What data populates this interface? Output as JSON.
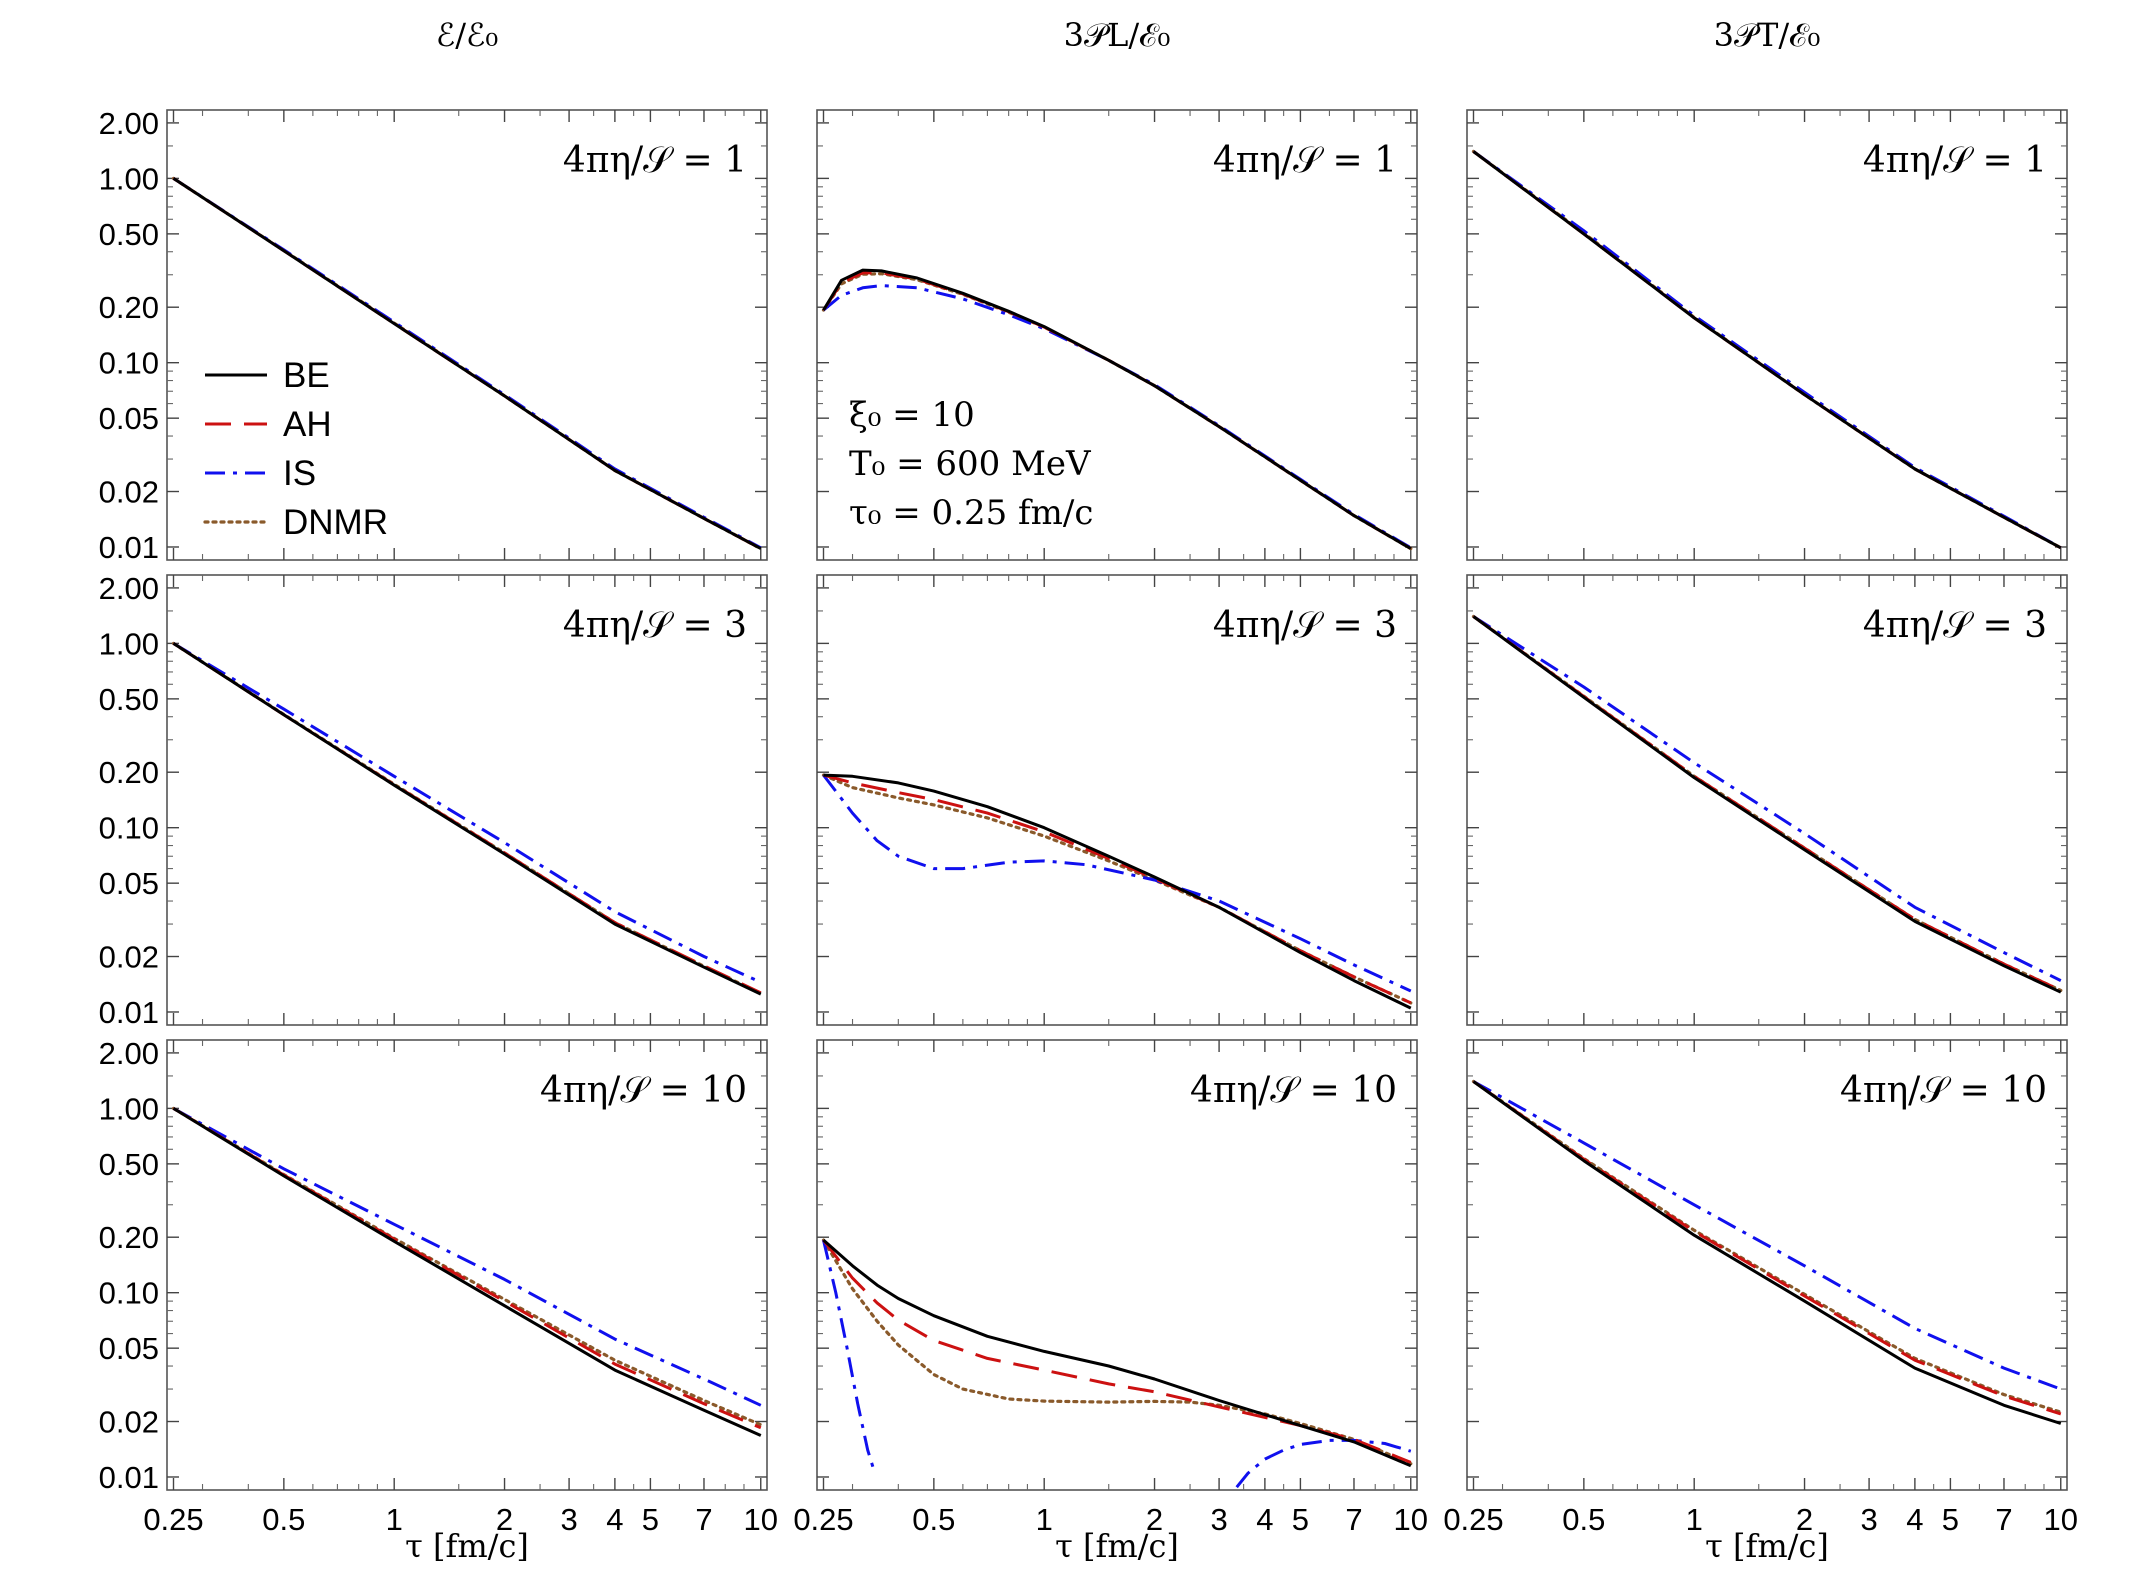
{
  "chart_data": {
    "type": "line",
    "layout": "3x3 grid of log-log panels",
    "columns": [
      {
        "title": "ℰ/ℰ₀"
      },
      {
        "title": "3𝒫L/ℰ₀"
      },
      {
        "title": "3𝒫T/ℰ₀"
      }
    ],
    "rows": [
      {
        "label": "4πη/𝒮 = 1"
      },
      {
        "label": "4πη/𝒮 = 3"
      },
      {
        "label": "4πη/𝒮 = 10"
      }
    ],
    "xlabel": "τ [fm/c]",
    "xscale": "log",
    "xlim": [
      0.24,
      10.4
    ],
    "x_ticks": [
      0.25,
      0.5,
      1,
      2,
      3,
      4,
      5,
      7,
      10
    ],
    "x_tick_labels": [
      "0.25",
      "0.5",
      "1",
      "2",
      "3",
      "4",
      "5",
      "7",
      "10"
    ],
    "yscale": "log",
    "ylim": [
      0.0085,
      2.35
    ],
    "y_ticks": [
      0.01,
      0.02,
      0.05,
      0.1,
      0.2,
      0.5,
      1,
      2
    ],
    "y_tick_labels": [
      "0.01",
      "0.02",
      "0.05",
      "0.10",
      "0.20",
      "0.50",
      "1.00",
      "2.00"
    ],
    "legend": {
      "position": "left-middle of top-left panel",
      "entries": [
        {
          "name": "BE",
          "color": "#000000",
          "dash": "solid"
        },
        {
          "name": "AH",
          "color": "#cc1111",
          "dash": "dashed"
        },
        {
          "name": "IS",
          "color": "#1010ee",
          "dash": "dash-dot"
        },
        {
          "name": "DNMR",
          "color": "#8a5a2b",
          "dash": "dotted"
        }
      ]
    },
    "annotation": {
      "line1": "ξ₀ = 10",
      "line2": "T₀ = 600 MeV",
      "line3": "τ₀ = 0.25 fm/c"
    },
    "panels": [
      {
        "row": 0,
        "col": 0,
        "series": [
          {
            "name": "BE",
            "x": [
              0.25,
              0.5,
              1,
              2,
              4,
              7,
              10
            ],
            "y": [
              1.0,
              0.405,
              0.163,
              0.066,
              0.026,
              0.0143,
              0.0098
            ]
          },
          {
            "name": "AH",
            "x": [
              0.25,
              0.5,
              1,
              2,
              4,
              7,
              10
            ],
            "y": [
              1.0,
              0.405,
              0.163,
              0.066,
              0.026,
              0.0143,
              0.0098
            ]
          },
          {
            "name": "IS",
            "x": [
              0.25,
              0.5,
              1,
              2,
              4,
              7,
              10
            ],
            "y": [
              1.0,
              0.41,
              0.166,
              0.067,
              0.0265,
              0.0145,
              0.0099
            ]
          },
          {
            "name": "DNMR",
            "x": [
              0.25,
              0.5,
              1,
              2,
              4,
              7,
              10
            ],
            "y": [
              1.0,
              0.406,
              0.164,
              0.066,
              0.026,
              0.0143,
              0.0098
            ]
          }
        ]
      },
      {
        "row": 0,
        "col": 1,
        "series": [
          {
            "name": "BE",
            "x": [
              0.25,
              0.28,
              0.32,
              0.36,
              0.45,
              0.6,
              0.8,
              1,
              1.5,
              2,
              3,
              5,
              7,
              10
            ],
            "y": [
              0.193,
              0.28,
              0.318,
              0.315,
              0.288,
              0.238,
              0.19,
              0.157,
              0.103,
              0.075,
              0.045,
              0.023,
              0.0148,
              0.0098
            ]
          },
          {
            "name": "AH",
            "x": [
              0.25,
              0.28,
              0.32,
              0.36,
              0.45,
              0.6,
              0.8,
              1,
              1.5,
              2,
              3,
              5,
              7,
              10
            ],
            "y": [
              0.193,
              0.272,
              0.307,
              0.307,
              0.284,
              0.236,
              0.189,
              0.156,
              0.103,
              0.075,
              0.045,
              0.023,
              0.0148,
              0.0098
            ]
          },
          {
            "name": "IS",
            "x": [
              0.25,
              0.28,
              0.32,
              0.36,
              0.45,
              0.6,
              0.8,
              1,
              1.5,
              2,
              3,
              5,
              7,
              10
            ],
            "y": [
              0.193,
              0.232,
              0.255,
              0.262,
              0.255,
              0.222,
              0.182,
              0.153,
              0.103,
              0.076,
              0.0455,
              0.0233,
              0.015,
              0.0099
            ]
          },
          {
            "name": "DNMR",
            "x": [
              0.25,
              0.28,
              0.32,
              0.36,
              0.45,
              0.6,
              0.8,
              1,
              1.5,
              2,
              3,
              5,
              7,
              10
            ],
            "y": [
              0.193,
              0.268,
              0.302,
              0.304,
              0.282,
              0.235,
              0.188,
              0.156,
              0.103,
              0.075,
              0.045,
              0.023,
              0.0148,
              0.0098
            ]
          }
        ]
      },
      {
        "row": 0,
        "col": 2,
        "series": [
          {
            "name": "BE",
            "x": [
              0.25,
              0.5,
              1,
              2,
              4,
              7,
              10
            ],
            "y": [
              1.4,
              0.5,
              0.175,
              0.067,
              0.0265,
              0.0145,
              0.0099
            ]
          },
          {
            "name": "AH",
            "x": [
              0.25,
              0.5,
              1,
              2,
              4,
              7,
              10
            ],
            "y": [
              1.4,
              0.5,
              0.175,
              0.067,
              0.0265,
              0.0145,
              0.0099
            ]
          },
          {
            "name": "IS",
            "x": [
              0.25,
              0.5,
              1,
              2,
              4,
              7,
              10
            ],
            "y": [
              1.4,
              0.52,
              0.18,
              0.069,
              0.027,
              0.0147,
              0.0099
            ]
          },
          {
            "name": "DNMR",
            "x": [
              0.25,
              0.5,
              1,
              2,
              4,
              7,
              10
            ],
            "y": [
              1.4,
              0.505,
              0.176,
              0.067,
              0.0265,
              0.0145,
              0.0099
            ]
          }
        ]
      },
      {
        "row": 1,
        "col": 0,
        "series": [
          {
            "name": "BE",
            "x": [
              0.25,
              0.5,
              1,
              2,
              4,
              7,
              10
            ],
            "y": [
              1.0,
              0.41,
              0.17,
              0.072,
              0.03,
              0.0175,
              0.0125
            ]
          },
          {
            "name": "AH",
            "x": [
              0.25,
              0.5,
              1,
              2,
              4,
              7,
              10
            ],
            "y": [
              1.0,
              0.41,
              0.171,
              0.073,
              0.0305,
              0.0178,
              0.0127
            ]
          },
          {
            "name": "IS",
            "x": [
              0.25,
              0.5,
              1,
              2,
              4,
              7,
              10
            ],
            "y": [
              1.0,
              0.44,
              0.19,
              0.083,
              0.035,
              0.02,
              0.0145
            ]
          },
          {
            "name": "DNMR",
            "x": [
              0.25,
              0.5,
              1,
              2,
              4,
              7,
              10
            ],
            "y": [
              1.0,
              0.412,
              0.172,
              0.073,
              0.0305,
              0.0177,
              0.0126
            ]
          }
        ]
      },
      {
        "row": 1,
        "col": 1,
        "series": [
          {
            "name": "BE",
            "x": [
              0.25,
              0.3,
              0.4,
              0.5,
              0.7,
              1,
              1.5,
              2,
              3,
              5,
              7,
              10
            ],
            "y": [
              0.193,
              0.19,
              0.175,
              0.158,
              0.13,
              0.1,
              0.07,
              0.054,
              0.037,
              0.021,
              0.0148,
              0.0105
            ]
          },
          {
            "name": "AH",
            "x": [
              0.25,
              0.3,
              0.4,
              0.5,
              0.7,
              1,
              1.5,
              2,
              3,
              5,
              7,
              10
            ],
            "y": [
              0.193,
              0.175,
              0.155,
              0.142,
              0.12,
              0.095,
              0.068,
              0.053,
              0.037,
              0.0215,
              0.0155,
              0.0112
            ]
          },
          {
            "name": "IS",
            "x": [
              0.25,
              0.3,
              0.35,
              0.4,
              0.5,
              0.6,
              0.8,
              1,
              1.3,
              2,
              3,
              5,
              7,
              10
            ],
            "y": [
              0.193,
              0.12,
              0.085,
              0.07,
              0.06,
              0.06,
              0.065,
              0.066,
              0.063,
              0.052,
              0.04,
              0.025,
              0.018,
              0.013
            ]
          },
          {
            "name": "DNMR",
            "x": [
              0.25,
              0.3,
              0.4,
              0.5,
              0.7,
              1,
              1.5,
              2,
              3,
              5,
              7,
              10
            ],
            "y": [
              0.193,
              0.165,
              0.145,
              0.133,
              0.113,
              0.09,
              0.066,
              0.052,
              0.037,
              0.0215,
              0.0155,
              0.0112
            ]
          }
        ]
      },
      {
        "row": 1,
        "col": 2,
        "series": [
          {
            "name": "BE",
            "x": [
              0.25,
              0.5,
              1,
              2,
              4,
              7,
              10
            ],
            "y": [
              1.4,
              0.51,
              0.187,
              0.076,
              0.031,
              0.0178,
              0.0128
            ]
          },
          {
            "name": "AH",
            "x": [
              0.25,
              0.5,
              1,
              2,
              4,
              7,
              10
            ],
            "y": [
              1.4,
              0.515,
              0.19,
              0.0775,
              0.0318,
              0.0182,
              0.0131
            ]
          },
          {
            "name": "IS",
            "x": [
              0.25,
              0.5,
              1,
              2,
              4,
              7,
              10
            ],
            "y": [
              1.4,
              0.58,
              0.225,
              0.093,
              0.037,
              0.021,
              0.0148
            ]
          },
          {
            "name": "DNMR",
            "x": [
              0.25,
              0.5,
              1,
              2,
              4,
              7,
              10
            ],
            "y": [
              1.4,
              0.517,
              0.19,
              0.0775,
              0.0318,
              0.0182,
              0.0131
            ]
          }
        ]
      },
      {
        "row": 2,
        "col": 0,
        "series": [
          {
            "name": "BE",
            "x": [
              0.25,
              0.5,
              1,
              2,
              4,
              7,
              10
            ],
            "y": [
              1.0,
              0.43,
              0.19,
              0.085,
              0.038,
              0.023,
              0.0168
            ]
          },
          {
            "name": "AH",
            "x": [
              0.25,
              0.5,
              1,
              2,
              4,
              7,
              10
            ],
            "y": [
              1.0,
              0.435,
              0.195,
              0.09,
              0.041,
              0.025,
              0.0185
            ]
          },
          {
            "name": "IS",
            "x": [
              0.25,
              0.5,
              1,
              2,
              4,
              7,
              10
            ],
            "y": [
              1.0,
              0.47,
              0.235,
              0.118,
              0.056,
              0.034,
              0.0245
            ]
          },
          {
            "name": "DNMR",
            "x": [
              0.25,
              0.5,
              1,
              2,
              4,
              7,
              10
            ],
            "y": [
              1.0,
              0.437,
              0.197,
              0.092,
              0.043,
              0.026,
              0.0192
            ]
          }
        ]
      },
      {
        "row": 2,
        "col": 1,
        "series": [
          {
            "name": "BE",
            "x": [
              0.25,
              0.3,
              0.35,
              0.4,
              0.5,
              0.7,
              1,
              1.5,
              2,
              3,
              5,
              7,
              10
            ],
            "y": [
              0.193,
              0.14,
              0.11,
              0.093,
              0.075,
              0.058,
              0.048,
              0.04,
              0.034,
              0.026,
              0.019,
              0.0155,
              0.0115
            ]
          },
          {
            "name": "AH",
            "x": [
              0.25,
              0.3,
              0.35,
              0.4,
              0.5,
              0.7,
              1,
              1.5,
              2,
              3,
              5,
              7,
              10
            ],
            "y": [
              0.193,
              0.12,
              0.088,
              0.071,
              0.055,
              0.044,
              0.038,
              0.032,
              0.029,
              0.024,
              0.019,
              0.016,
              0.012
            ]
          },
          {
            "name": "IS1",
            "x": [
              0.25,
              0.27,
              0.29,
              0.31,
              0.33,
              0.345
            ],
            "y": [
              0.193,
              0.1,
              0.05,
              0.025,
              0.014,
              0.0105
            ]
          },
          {
            "name": "IS2",
            "x": [
              3.35,
              3.6,
              4,
              4.5,
              5,
              6,
              7,
              8.5,
              10
            ],
            "y": [
              0.0088,
              0.0105,
              0.0125,
              0.014,
              0.015,
              0.0158,
              0.0158,
              0.0152,
              0.0138
            ]
          },
          {
            "name": "DNMR",
            "x": [
              0.25,
              0.3,
              0.35,
              0.4,
              0.5,
              0.6,
              0.8,
              1,
              1.5,
              2,
              2.5,
              3,
              4,
              5,
              7,
              10
            ],
            "y": [
              0.193,
              0.105,
              0.07,
              0.052,
              0.036,
              0.03,
              0.0265,
              0.0258,
              0.0255,
              0.0257,
              0.0255,
              0.0245,
              0.022,
              0.0195,
              0.016,
              0.0118
            ]
          }
        ]
      },
      {
        "row": 2,
        "col": 2,
        "series": [
          {
            "name": "BE",
            "x": [
              0.25,
              0.5,
              1,
              2,
              4,
              7,
              10
            ],
            "y": [
              1.4,
              0.52,
              0.205,
              0.09,
              0.039,
              0.0245,
              0.0195
            ]
          },
          {
            "name": "AH",
            "x": [
              0.25,
              0.5,
              1,
              2,
              4,
              7,
              10
            ],
            "y": [
              1.4,
              0.53,
              0.215,
              0.096,
              0.043,
              0.0275,
              0.022
            ]
          },
          {
            "name": "IS",
            "x": [
              0.25,
              0.5,
              1,
              2,
              4,
              7,
              10
            ],
            "y": [
              1.4,
              0.65,
              0.3,
              0.14,
              0.064,
              0.039,
              0.03
            ]
          },
          {
            "name": "DNMR",
            "x": [
              0.25,
              0.5,
              1,
              2,
              4,
              7,
              10
            ],
            "y": [
              1.4,
              0.535,
              0.218,
              0.098,
              0.044,
              0.028,
              0.0225
            ]
          }
        ]
      }
    ]
  }
}
